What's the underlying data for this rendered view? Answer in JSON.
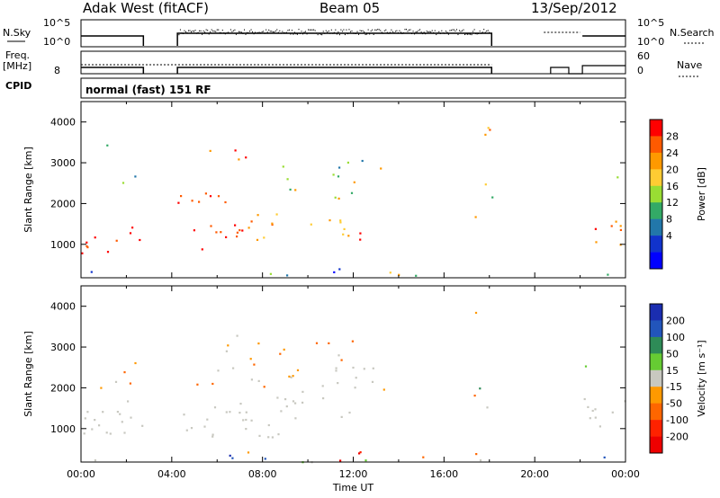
{
  "header": {
    "station": "Adak West (fitACF)",
    "beam": "Beam 05",
    "date": "13/Sep/2012"
  },
  "labels": {
    "nsky": "N.Sky",
    "nsearch": "N.Search",
    "freq_line1": "Freq.",
    "freq_line2": "[MHz]",
    "nave": "Nave",
    "cpid": "CPID",
    "cpid_value": "normal (fast) 151 RF"
  },
  "small_axes": {
    "noise_left": [
      "10^5",
      "10^0"
    ],
    "noise_right": [
      "10^5",
      "10^0"
    ],
    "freq_left": [
      "",
      "8"
    ],
    "freq_right": [
      "60",
      "0"
    ]
  },
  "chart_data": [
    {
      "type": "heatmap",
      "title": "",
      "xlabel": "",
      "ylabel": "Slant Range [km]",
      "xlim": [
        "00:00",
        "00:00"
      ],
      "ylim": [
        180,
        4500
      ],
      "yticks": [
        1000,
        2000,
        3000,
        4000
      ],
      "colorbar": {
        "label": "Power [dB]",
        "ticks": [
          28,
          24,
          20,
          16,
          12,
          8,
          4
        ],
        "colors": [
          "#ff0000",
          "#ff5a00",
          "#ff9900",
          "#ffcc33",
          "#99dd33",
          "#33aa66",
          "#2277aa",
          "#1133cc",
          "#0000ff"
        ]
      },
      "data_gaps_hours": [
        [
          2.75,
          4.25
        ],
        [
          18.1,
          20.0
        ],
        [
          20.1,
          22.1
        ]
      ]
    },
    {
      "type": "heatmap",
      "title": "",
      "xlabel": "Time UT",
      "ylabel": "Slant Range [km]",
      "xlim": [
        "00:00",
        "00:00"
      ],
      "ylim": [
        180,
        4500
      ],
      "yticks": [
        1000,
        2000,
        3000,
        4000
      ],
      "xticks": [
        "00:00",
        "04:00",
        "08:00",
        "12:00",
        "16:00",
        "20:00",
        "00:00"
      ],
      "colorbar": {
        "label": "Velocity [m s⁻¹]",
        "ticks": [
          200,
          100,
          50,
          15,
          -15,
          -50,
          -100,
          -200
        ],
        "colors": [
          "#1a2db0",
          "#2255bb",
          "#2e8b57",
          "#66cc33",
          "#c8c8c0",
          "#ff9900",
          "#ff6600",
          "#ff2200",
          "#ee0000"
        ]
      },
      "data_gaps_hours": [
        [
          2.75,
          4.25
        ],
        [
          18.1,
          20.0
        ],
        [
          20.1,
          22.1
        ]
      ]
    }
  ]
}
